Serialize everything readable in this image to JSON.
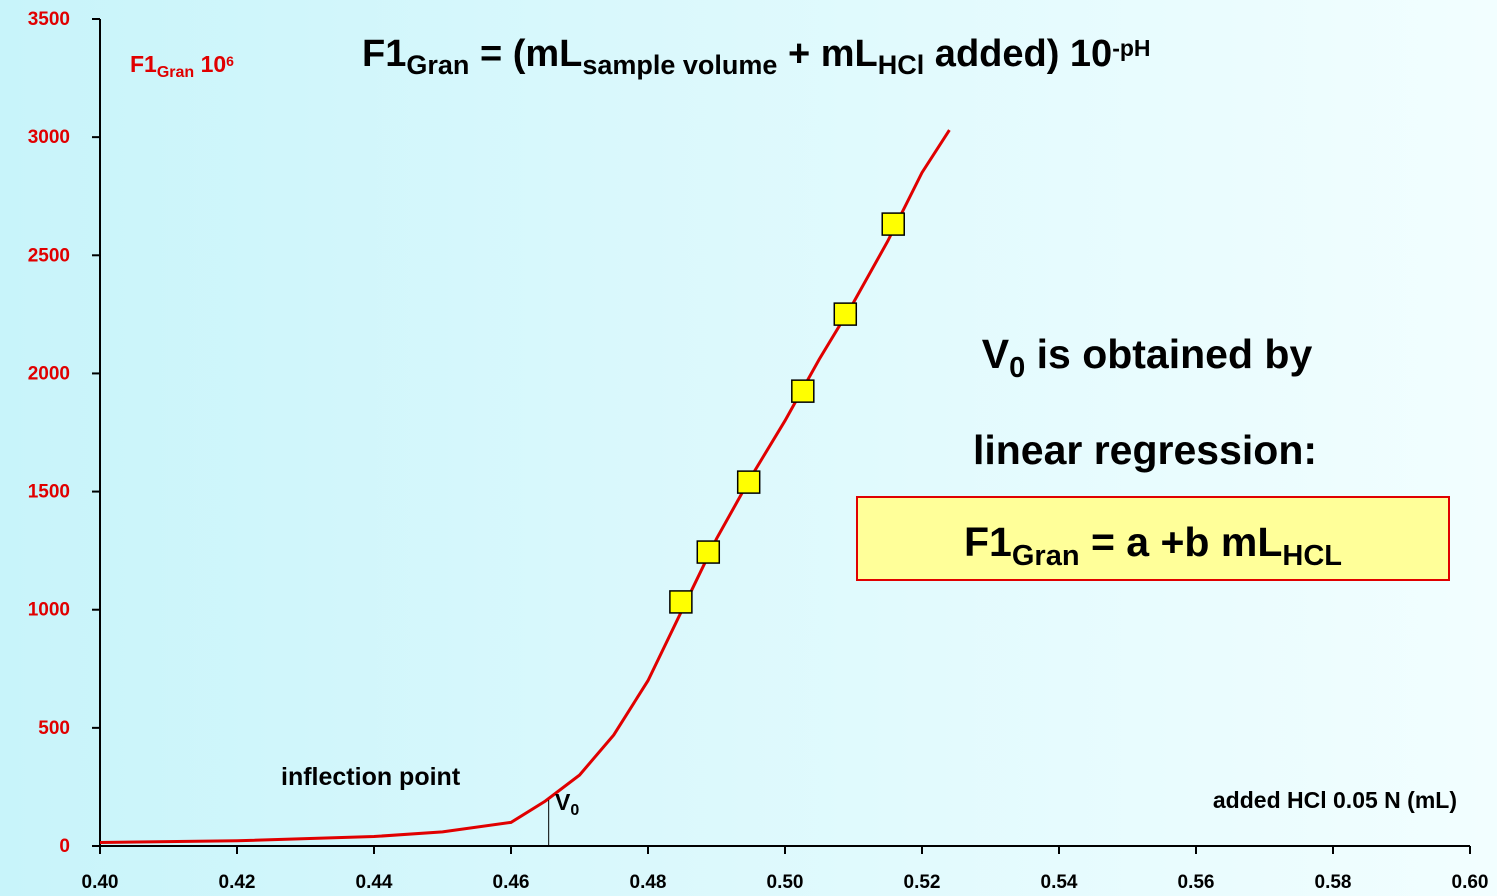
{
  "chart_data": {
    "type": "line",
    "title_parts": [
      {
        "text": "F1",
        "pos": "normal"
      },
      {
        "text": "Gran",
        "pos": "sub"
      },
      {
        "text": " = (mL",
        "pos": "normal"
      },
      {
        "text": "sample volume",
        "pos": "sub"
      },
      {
        "text": " + mL",
        "pos": "normal"
      },
      {
        "text": "HCl",
        "pos": "sub"
      },
      {
        "text": " added) 10",
        "pos": "normal"
      },
      {
        "text": "-pH",
        "pos": "sup"
      }
    ],
    "y_label_parts": [
      {
        "text": "F1",
        "pos": "normal"
      },
      {
        "text": "Gran",
        "pos": "sub"
      },
      {
        "text": " 10",
        "pos": "normal"
      },
      {
        "text": "6",
        "pos": "sup"
      }
    ],
    "x_label": "added HCl 0.05 N (mL)",
    "annotations": {
      "inflection": "inflection point",
      "v0_parts": [
        {
          "text": "V",
          "pos": "normal"
        },
        {
          "text": "0",
          "pos": "sub"
        }
      ],
      "v0": 0.4655,
      "note_line1_parts": [
        {
          "text": "V",
          "pos": "normal"
        },
        {
          "text": "0",
          "pos": "sub"
        },
        {
          "text": " is obtained by",
          "pos": "normal"
        }
      ],
      "note_line2": "linear regression:",
      "formula_parts": [
        {
          "text": "F1",
          "pos": "normal"
        },
        {
          "text": "Gran",
          "pos": "sub"
        },
        {
          "text": " = a +b mL",
          "pos": "normal"
        },
        {
          "text": "HCL",
          "pos": "sub"
        }
      ]
    },
    "series": [
      {
        "type": "line",
        "color": "#e00000",
        "x": [
          0.4,
          0.42,
          0.44,
          0.45,
          0.46,
          0.465,
          0.47,
          0.475,
          0.48,
          0.485,
          0.49,
          0.495,
          0.5,
          0.505,
          0.51,
          0.515,
          0.52,
          0.524
        ],
        "values": [
          15,
          22,
          40,
          60,
          100,
          190,
          300,
          470,
          700,
          1000,
          1300,
          1560,
          1800,
          2060,
          2300,
          2560,
          2850,
          3030
        ]
      },
      {
        "type": "scatter",
        "color": "#ffff00",
        "x": [
          0.4848,
          0.4888,
          0.4947,
          0.5026,
          0.5088,
          0.5158
        ],
        "values": [
          1033,
          1244,
          1540,
          1925,
          2251,
          2632
        ]
      }
    ],
    "xlim": [
      0.4,
      0.6
    ],
    "ylim": [
      0,
      3500
    ],
    "xticks": [
      {
        "value": 0.4,
        "label": "0.40"
      },
      {
        "value": 0.42,
        "label": "0.42"
      },
      {
        "value": 0.44,
        "label": "0.44"
      },
      {
        "value": 0.46,
        "label": "0.46"
      },
      {
        "value": 0.48,
        "label": "0.48"
      },
      {
        "value": 0.5,
        "label": "0.50"
      },
      {
        "value": 0.52,
        "label": "0.52"
      },
      {
        "value": 0.54,
        "label": "0.54"
      },
      {
        "value": 0.56,
        "label": "0.56"
      },
      {
        "value": 0.58,
        "label": "0.58"
      },
      {
        "value": 0.6,
        "label": "0.60"
      }
    ],
    "yticks": [
      0,
      500,
      1000,
      1500,
      2000,
      2500,
      3000,
      3500
    ],
    "y_tick_color": "#e00000"
  }
}
